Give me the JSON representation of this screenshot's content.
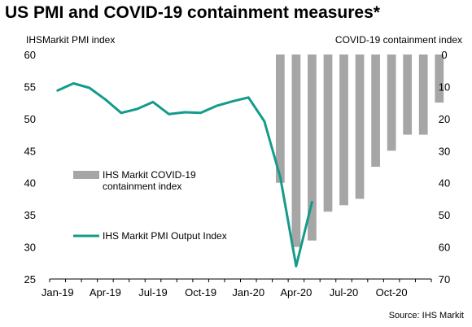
{
  "title": "US PMI and COVID-19 containment measures*",
  "source": "Source: IHS Markit",
  "chart_data": {
    "type": "bar+line",
    "title": "US PMI and COVID-19 containment measures*",
    "left_axis": {
      "label": "IHSMarkit PMI index",
      "range": [
        25,
        60
      ],
      "ticks": [
        25,
        30,
        35,
        40,
        45,
        50,
        55,
        60
      ]
    },
    "right_axis": {
      "label": "COVID-19 containment index",
      "range": [
        0,
        70
      ],
      "inverted": true,
      "ticks": [
        0,
        10,
        20,
        30,
        40,
        50,
        60,
        70
      ]
    },
    "x_tick_labels": [
      "Jan-19",
      "Apr-19",
      "Jul-19",
      "Oct-19",
      "Jan-20",
      "Apr-20",
      "Jul-20",
      "Oct-20"
    ],
    "x_months": [
      "Jan-19",
      "Feb-19",
      "Mar-19",
      "Apr-19",
      "May-19",
      "Jun-19",
      "Jul-19",
      "Aug-19",
      "Sep-19",
      "Oct-19",
      "Nov-19",
      "Dec-19",
      "Jan-20",
      "Feb-20",
      "Mar-20",
      "Apr-20",
      "May-20",
      "Jun-20",
      "Jul-20",
      "Aug-20",
      "Sep-20",
      "Oct-20",
      "Nov-20",
      "Dec-20"
    ],
    "series": [
      {
        "name": "IHS Markit COVID-19 containment index",
        "type": "bar",
        "axis": "right",
        "color": "#a6a6a6",
        "start_month": "Mar-20",
        "values": [
          40,
          60,
          58,
          49,
          47,
          45,
          35,
          30,
          25,
          25,
          15
        ]
      },
      {
        "name": "IHS Markit PMI Output Index",
        "type": "line",
        "axis": "left",
        "color": "#149b8a",
        "start_month": "Jan-19",
        "values": [
          54.4,
          55.5,
          54.8,
          53.0,
          50.9,
          51.5,
          52.6,
          50.7,
          51.0,
          50.9,
          52.0,
          52.7,
          53.3,
          49.6,
          40.9,
          27.0,
          37.0
        ]
      }
    ],
    "legend": [
      {
        "name": "IHS Markit COVID-19",
        "name_line2": "containment index",
        "marker": "bar",
        "color": "#a6a6a6"
      },
      {
        "name": "IHS Markit PMI Output Index",
        "marker": "line",
        "color": "#149b8a"
      }
    ],
    "grid": false
  }
}
